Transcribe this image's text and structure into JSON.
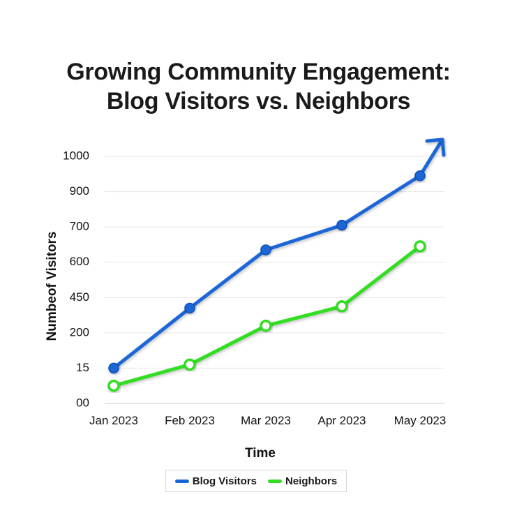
{
  "title_line1": "Growing Community Engagement:",
  "title_line2": "Blog Visitors vs. Neighbors",
  "chart_data": {
    "type": "line",
    "title": "Growing Community Engagement: Blog Visitors vs. Neighbors",
    "xlabel": "Time",
    "ylabel": "Numbeof Visitors",
    "categories": [
      "Jan 2023",
      "Feb 2023",
      "Mar 2023",
      "Apr 2023",
      "May 2023"
    ],
    "y_tick_labels": [
      "00",
      "15",
      "200",
      "450",
      "600",
      "700",
      "900",
      "1000"
    ],
    "y_scale_note": "tick labels are unevenly spaced; values are given as positions on the tick ladder (0 = '00', 7 = '1000')",
    "series": [
      {
        "name": "Blog Visitors",
        "color": "#1a66d6",
        "marker": "filled",
        "values": [
          1.0,
          2.7,
          4.35,
          5.05,
          6.45
        ]
      },
      {
        "name": "Neighbors",
        "color": "#33dd22",
        "marker": "hollow",
        "values": [
          0.5,
          1.1,
          2.2,
          2.75,
          4.45
        ]
      }
    ],
    "ylim": [
      0,
      7
    ],
    "grid": true,
    "legend_position": "bottom-center",
    "trend_arrow": "up-right at end of Blog Visitors series"
  }
}
